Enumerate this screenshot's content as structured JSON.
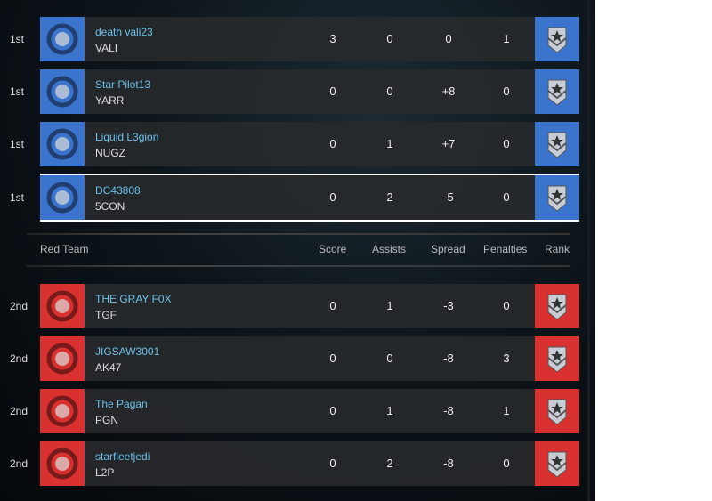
{
  "colors": {
    "blue_team": "#3b74cc",
    "red_team": "#d93030",
    "name": "#6cc0e8"
  },
  "header": {
    "team": "Red Team",
    "score": "Score",
    "assists": "Assists",
    "spread": "Spread",
    "penalties": "Penalties",
    "rank": "Rank"
  },
  "blue": [
    {
      "place": "1st",
      "name": "death vali23",
      "tag": "VALI",
      "score": "3",
      "assists": "0",
      "spread": "0",
      "penalties": "1",
      "emblem": "sword-emblem-icon",
      "rank_icon": "winged-star-rank-icon"
    },
    {
      "place": "1st",
      "name": "Star Pilot13",
      "tag": "YARR",
      "score": "0",
      "assists": "0",
      "spread": "+8",
      "penalties": "0",
      "emblem": "gear-lightning-emblem-icon",
      "rank_icon": "winged-star-rank-icon"
    },
    {
      "place": "1st",
      "name": "Liquid L3gion",
      "tag": "NUGZ",
      "score": "0",
      "assists": "1",
      "spread": "+7",
      "penalties": "0",
      "emblem": "lion-shield-emblem-icon",
      "rank_icon": "chevron-diamond-rank-icon"
    },
    {
      "place": "1st",
      "name": "DC43808",
      "tag": "5CON",
      "score": "0",
      "assists": "2",
      "spread": "-5",
      "penalties": "0",
      "emblem": "pirate-emblem-icon",
      "rank_icon": "chevron-star-rank-icon",
      "selected": true
    }
  ],
  "red": [
    {
      "place": "2nd",
      "name": "THE GRAY F0X",
      "tag": "TGF",
      "score": "0",
      "assists": "1",
      "spread": "-3",
      "penalties": "0",
      "emblem": "castle-emblem-icon",
      "rank_icon": "chevron-rank-icon"
    },
    {
      "place": "2nd",
      "name": "JIGSAW3001",
      "tag": "AK47",
      "score": "0",
      "assists": "0",
      "spread": "-8",
      "penalties": "3",
      "emblem": "spider-emblem-icon",
      "rank_icon": "gold-chevron-rank-icon"
    },
    {
      "place": "2nd",
      "name": "The Pagan",
      "tag": "PGN",
      "score": "0",
      "assists": "1",
      "spread": "-8",
      "penalties": "1",
      "emblem": "skull-emblem-icon",
      "rank_icon": "chevron-star-rank-icon"
    },
    {
      "place": "2nd",
      "name": "starfleetjedi",
      "tag": "L2P",
      "score": "0",
      "assists": "2",
      "spread": "-8",
      "penalties": "0",
      "emblem": "cross-emblem-icon",
      "rank_icon": "winged-star-rank-icon"
    }
  ]
}
